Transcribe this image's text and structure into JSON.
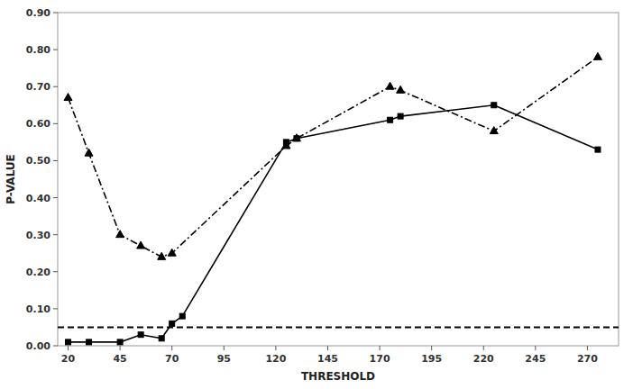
{
  "chart_data": {
    "type": "line",
    "xlabel": "THRESHOLD",
    "ylabel": "P-VALUE",
    "series": [
      {
        "x": [
          20,
          30,
          45,
          55,
          65,
          70,
          75,
          125,
          130,
          175,
          180,
          225,
          275
        ],
        "values": [
          0.01,
          0.01,
          0.01,
          0.03,
          0.02,
          0.06,
          0.08,
          0.55,
          0.56,
          0.61,
          0.62,
          0.65,
          0.53
        ],
        "color": "#000000",
        "marker": "square",
        "line_style": "solid"
      },
      {
        "x": [
          20,
          30,
          45,
          55,
          65,
          70,
          125,
          130,
          175,
          180,
          225,
          275
        ],
        "values": [
          0.67,
          0.52,
          0.3,
          0.27,
          0.24,
          0.25,
          0.54,
          0.56,
          0.7,
          0.69,
          0.58,
          0.78
        ],
        "color": "#000000",
        "marker": "triangle",
        "line_style": "dashdot"
      }
    ],
    "reference_line": {
      "value": 0.05,
      "color": "#000000",
      "line_style": "dashed"
    },
    "xlim": [
      15,
      285
    ],
    "ylim": [
      0.0,
      0.9
    ],
    "xticks": [
      20,
      45,
      70,
      95,
      120,
      145,
      170,
      195,
      220,
      245,
      270
    ],
    "yticks": [
      {
        "value": 0,
        "label": "0.00"
      },
      {
        "value": 0.1,
        "label": "0.10"
      },
      {
        "value": 0.2,
        "label": "0.20"
      },
      {
        "value": 0.3,
        "label": "0.30"
      },
      {
        "value": 0.4,
        "label": "0.40"
      },
      {
        "value": 0.5,
        "label": "0.50"
      },
      {
        "value": 0.6,
        "label": "0.60"
      },
      {
        "value": 0.7,
        "label": "0.70"
      },
      {
        "value": 0.8,
        "label": "0.80"
      },
      {
        "value": 0.9,
        "label": "0.90"
      }
    ],
    "grid": false
  }
}
